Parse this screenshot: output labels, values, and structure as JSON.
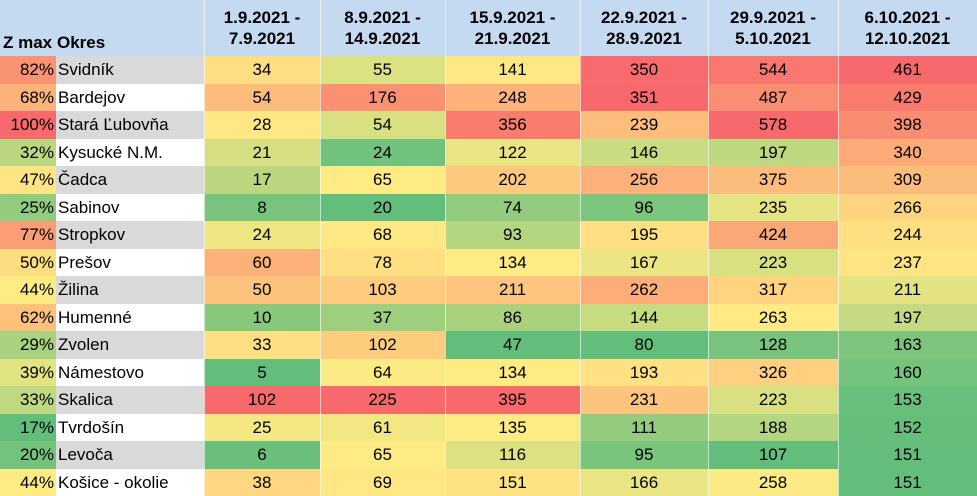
{
  "chart_data": {
    "type": "table",
    "columns": {
      "zmax": "Z max",
      "okres": "Okres",
      "weeks": [
        [
          "1.9.2021 -",
          "7.9.2021"
        ],
        [
          "8.9.2021 -",
          "14.9.2021"
        ],
        [
          "15.9.2021 -",
          "21.9.2021"
        ],
        [
          "22.9.2021 -",
          "28.9.2021"
        ],
        [
          "29.9.2021 -",
          "5.10.2021"
        ],
        [
          "6.10.2021 -",
          "12.10.2021"
        ]
      ]
    },
    "rows": [
      {
        "zmax": "82%",
        "okres": "Svidník",
        "values": [
          34,
          55,
          141,
          350,
          544,
          461
        ]
      },
      {
        "zmax": "68%",
        "okres": "Bardejov",
        "values": [
          54,
          176,
          248,
          351,
          487,
          429
        ]
      },
      {
        "zmax": "100%",
        "okres": "Stará Ľubovňa",
        "values": [
          28,
          54,
          356,
          239,
          578,
          398
        ]
      },
      {
        "zmax": "32%",
        "okres": "Kysucké N.M.",
        "values": [
          21,
          24,
          122,
          146,
          197,
          340
        ]
      },
      {
        "zmax": "47%",
        "okres": "Čadca",
        "values": [
          17,
          65,
          202,
          256,
          375,
          309
        ]
      },
      {
        "zmax": "25%",
        "okres": "Sabinov",
        "values": [
          8,
          20,
          74,
          96,
          235,
          266
        ]
      },
      {
        "zmax": "77%",
        "okres": "Stropkov",
        "values": [
          24,
          68,
          93,
          195,
          424,
          244
        ]
      },
      {
        "zmax": "50%",
        "okres": "Prešov",
        "values": [
          60,
          78,
          134,
          167,
          223,
          237
        ]
      },
      {
        "zmax": "44%",
        "okres": "Žilina",
        "values": [
          50,
          103,
          211,
          262,
          317,
          211
        ]
      },
      {
        "zmax": "62%",
        "okres": "Humenné",
        "values": [
          10,
          37,
          86,
          144,
          263,
          197
        ]
      },
      {
        "zmax": "29%",
        "okres": "Zvolen",
        "values": [
          33,
          102,
          47,
          80,
          128,
          163
        ]
      },
      {
        "zmax": "39%",
        "okres": "Námestovo",
        "values": [
          5,
          64,
          134,
          193,
          326,
          160
        ]
      },
      {
        "zmax": "33%",
        "okres": "Skalica",
        "values": [
          102,
          225,
          395,
          231,
          223,
          153
        ]
      },
      {
        "zmax": "17%",
        "okres": "Tvrdošín",
        "values": [
          25,
          61,
          135,
          111,
          188,
          152
        ]
      },
      {
        "zmax": "20%",
        "okres": "Levoča",
        "values": [
          6,
          65,
          116,
          95,
          107,
          151
        ]
      },
      {
        "zmax": "44%",
        "okres": "Košice - okolie",
        "values": [
          38,
          69,
          151,
          166,
          258,
          151
        ]
      }
    ],
    "colors": {
      "header_bg": "#c5d9f1",
      "row_odd_bg": "#ffffff",
      "row_even_bg": "#d9d9d9",
      "scale_low": "#63be7b",
      "scale_mid": "#ffeb84",
      "scale_high": "#f8696b"
    }
  }
}
